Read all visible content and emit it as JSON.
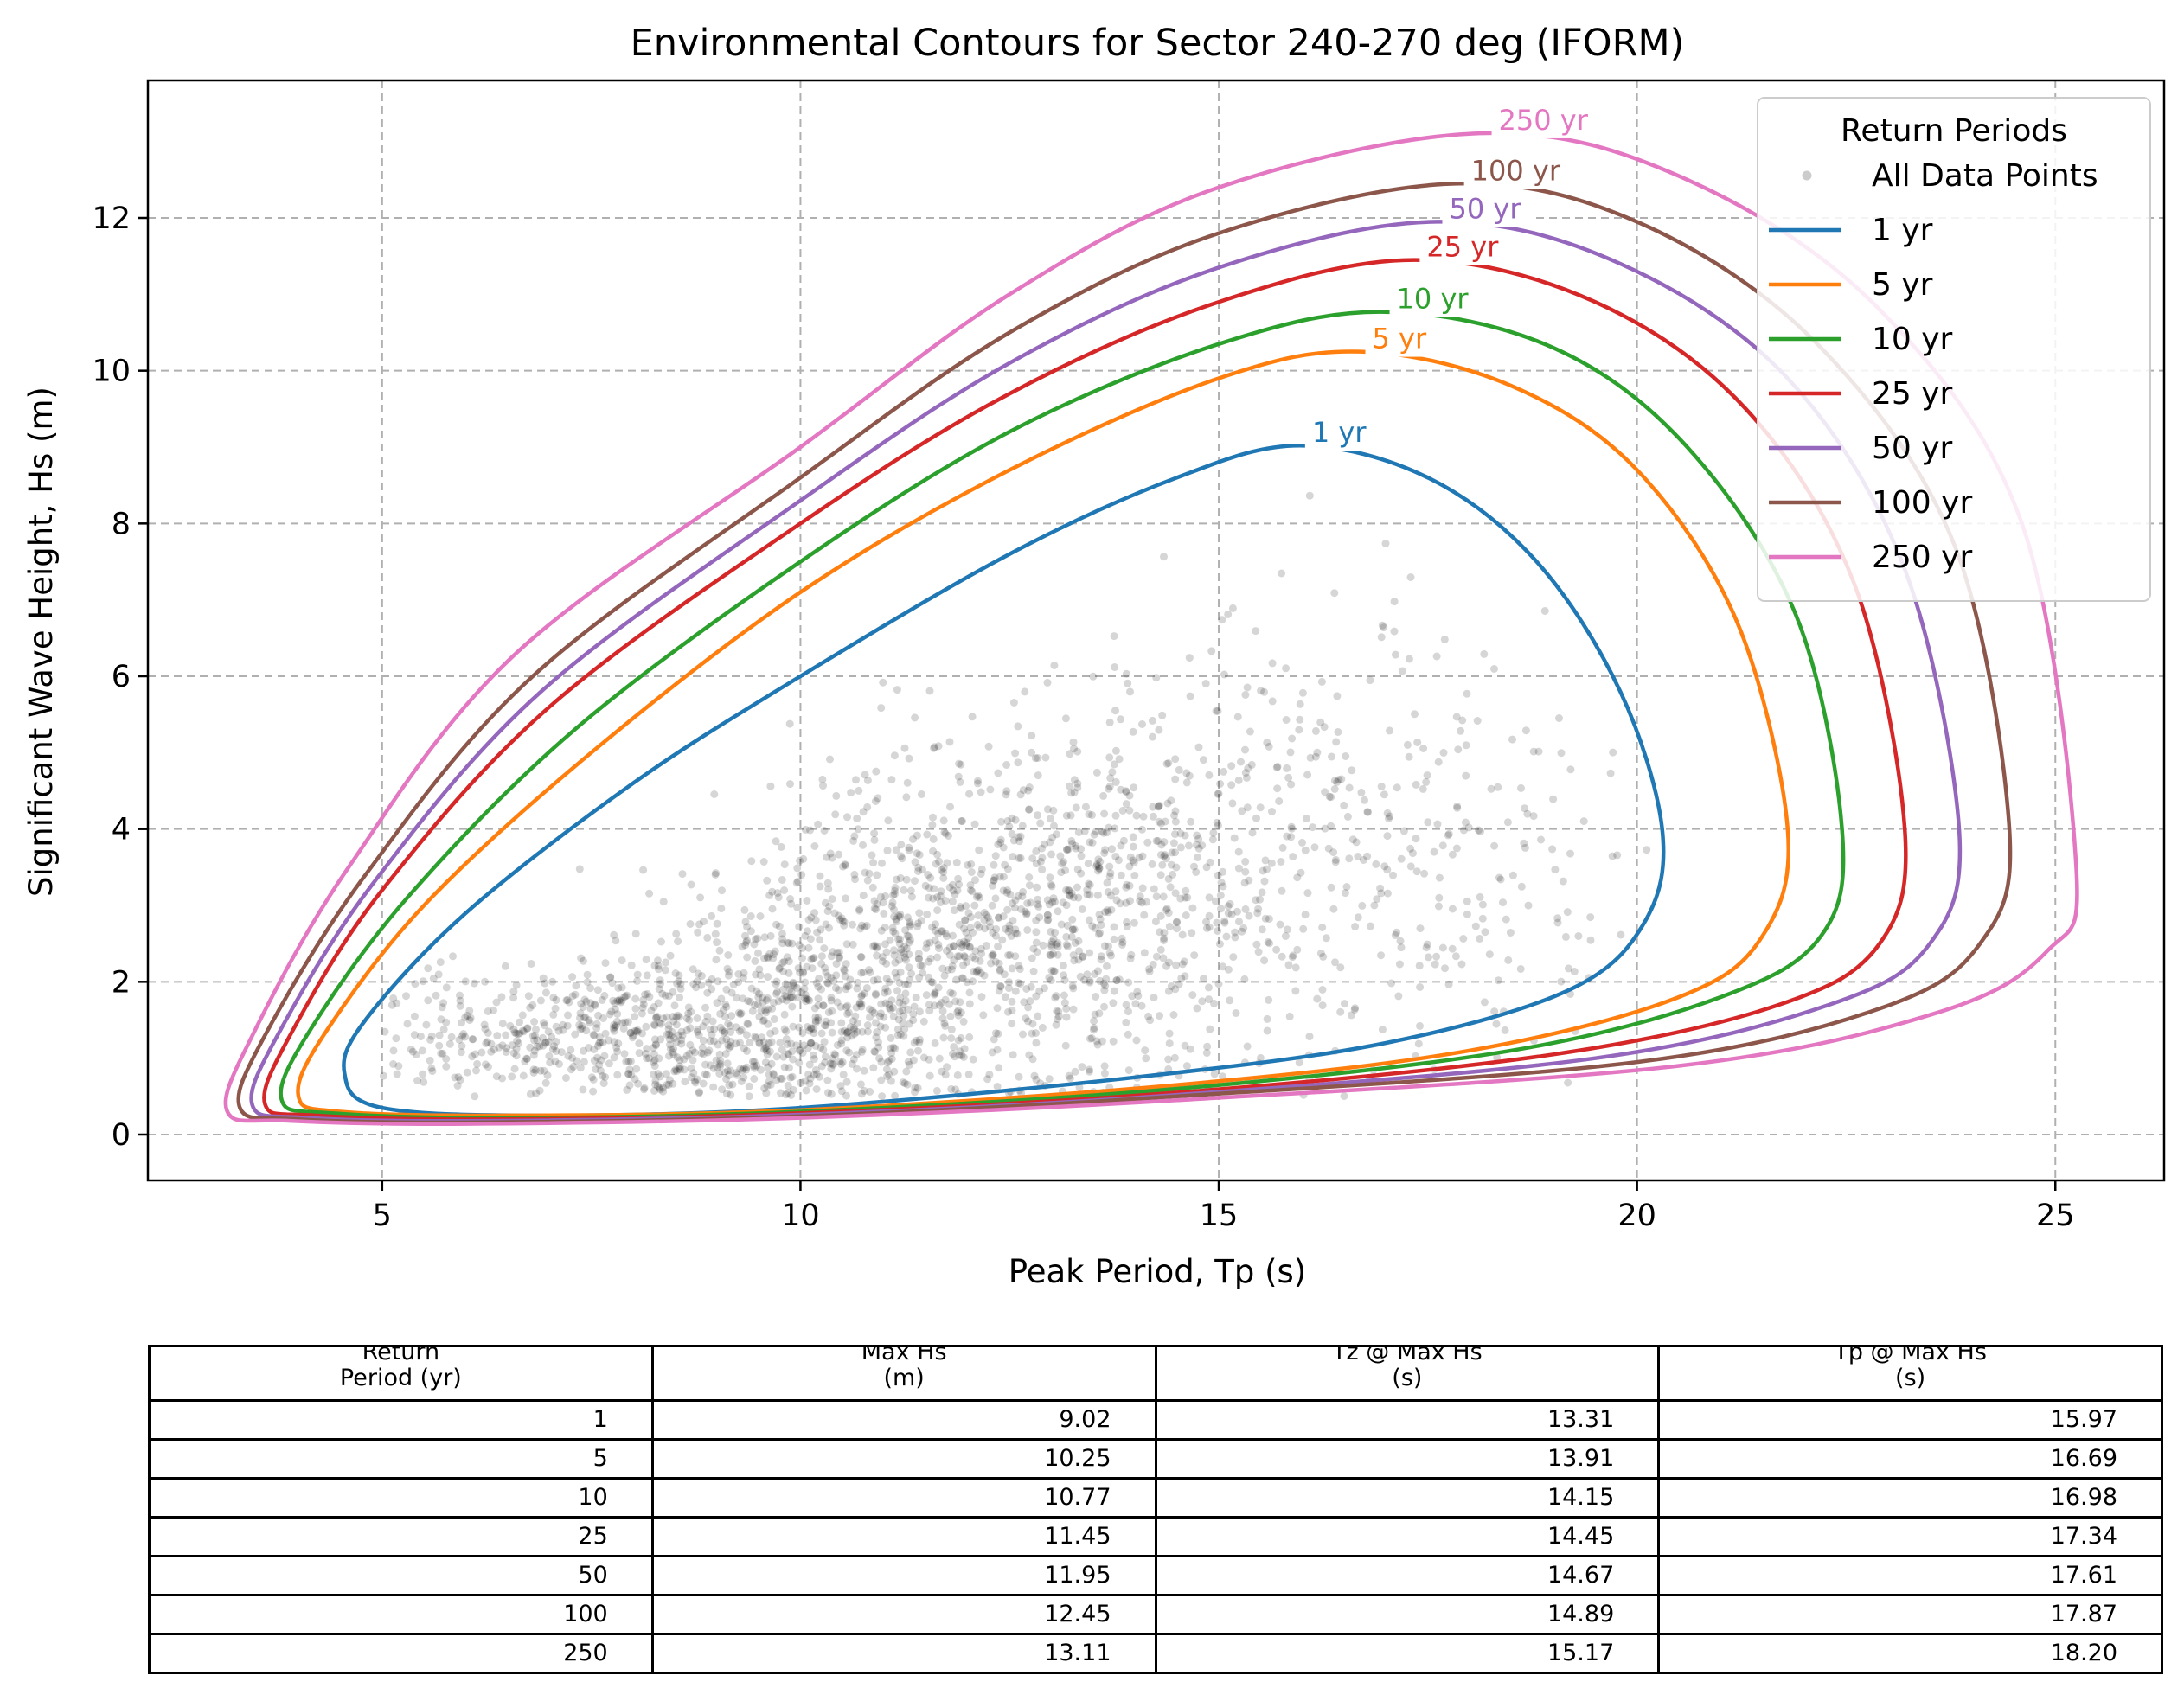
{
  "chart_data": {
    "type": "line",
    "title": "Environmental Contours for Sector 240-270 deg (IFORM)",
    "xlabel": "Peak Period, Tp (s)",
    "ylabel": "Significant Wave Height, Hs (m)",
    "xlim": [
      2.2,
      26.3
    ],
    "ylim": [
      -0.6,
      13.8
    ],
    "xticks": [
      5,
      10,
      15,
      20,
      25
    ],
    "yticks": [
      0,
      2,
      4,
      6,
      8,
      10,
      12
    ],
    "grid": true,
    "legend": {
      "title": "Return Periods",
      "placement": "top-right",
      "entries": [
        "All Data Points",
        "1 yr",
        "5 yr",
        "10 yr",
        "25 yr",
        "50 yr",
        "100 yr",
        "250 yr"
      ]
    },
    "scatter": {
      "name": "All Data Points",
      "color": "#000000"
    },
    "series": [
      {
        "name": "1 yr",
        "label": "1 yr",
        "color": "#1f77b4",
        "x": [
          15.97,
          17.5,
          18.8,
          19.8,
          20.3,
          20.1,
          19.2,
          17.0,
          14.0,
          10.0,
          7.0,
          5.0,
          4.55,
          4.8,
          6.0,
          8.0,
          10.0,
          12.5,
          14.5,
          15.97
        ],
        "y": [
          9.02,
          8.6,
          7.5,
          5.8,
          4.0,
          2.8,
          1.9,
          1.2,
          0.75,
          0.35,
          0.25,
          0.35,
          0.8,
          1.5,
          2.9,
          4.6,
          6.0,
          7.6,
          8.6,
          9.02
        ]
      },
      {
        "name": "5 yr",
        "label": "5 yr",
        "color": "#ff7f0e",
        "x": [
          16.69,
          18.5,
          20.0,
          21.2,
          21.8,
          21.5,
          20.5,
          18.0,
          14.5,
          10.0,
          6.5,
          4.5,
          4.0,
          4.3,
          5.5,
          7.5,
          10.0,
          12.5,
          15.0,
          16.69
        ],
        "y": [
          10.25,
          9.8,
          8.7,
          6.7,
          4.0,
          2.6,
          1.8,
          1.1,
          0.65,
          0.32,
          0.25,
          0.3,
          0.5,
          1.3,
          3.0,
          5.0,
          7.1,
          8.7,
          9.9,
          10.25
        ]
      },
      {
        "name": "10 yr",
        "label": "10 yr",
        "color": "#2ca02c",
        "x": [
          16.98,
          19.0,
          20.6,
          21.9,
          22.45,
          22.2,
          21.0,
          18.5,
          14.5,
          10.0,
          6.5,
          4.4,
          3.8,
          4.1,
          5.3,
          7.3,
          10.0,
          12.5,
          15.0,
          16.98
        ],
        "y": [
          10.77,
          10.3,
          9.0,
          6.8,
          4.0,
          2.6,
          1.8,
          1.1,
          0.6,
          0.3,
          0.22,
          0.28,
          0.45,
          1.3,
          3.1,
          5.3,
          7.5,
          9.2,
          10.35,
          10.77
        ]
      },
      {
        "name": "25 yr",
        "label": "25 yr",
        "color": "#d62728",
        "x": [
          17.34,
          19.5,
          21.3,
          22.6,
          23.2,
          22.9,
          21.7,
          19.0,
          14.5,
          10.0,
          6.3,
          4.2,
          3.6,
          3.9,
          5.0,
          7.0,
          10.0,
          12.5,
          15.0,
          17.34
        ],
        "y": [
          11.45,
          10.9,
          9.5,
          7.2,
          4.0,
          2.5,
          1.7,
          1.05,
          0.55,
          0.28,
          0.2,
          0.25,
          0.4,
          1.3,
          3.2,
          5.6,
          8.0,
          9.7,
          10.9,
          11.45
        ]
      },
      {
        "name": "50 yr",
        "label": "50 yr",
        "color": "#9467bd",
        "x": [
          17.61,
          19.8,
          21.8,
          23.2,
          23.85,
          23.5,
          22.3,
          19.5,
          14.5,
          10.0,
          6.2,
          4.1,
          3.45,
          3.75,
          4.9,
          6.9,
          10.0,
          12.5,
          15.0,
          17.61
        ],
        "y": [
          11.95,
          11.4,
          9.9,
          7.4,
          4.0,
          2.5,
          1.7,
          1.0,
          0.52,
          0.26,
          0.18,
          0.22,
          0.38,
          1.3,
          3.3,
          5.8,
          8.3,
          10.1,
          11.35,
          11.95
        ]
      },
      {
        "name": "100 yr",
        "label": "100 yr",
        "color": "#8c564b",
        "x": [
          17.87,
          20.1,
          22.2,
          23.8,
          24.45,
          24.1,
          22.9,
          20.0,
          14.5,
          10.0,
          6.1,
          4.0,
          3.3,
          3.6,
          4.8,
          6.8,
          10.0,
          12.5,
          15.0,
          17.87
        ],
        "y": [
          12.45,
          11.9,
          10.3,
          7.7,
          4.0,
          2.5,
          1.65,
          0.95,
          0.5,
          0.24,
          0.16,
          0.2,
          0.35,
          1.3,
          3.4,
          6.0,
          8.6,
          10.5,
          11.8,
          12.45
        ]
      },
      {
        "name": "250 yr",
        "label": "250 yr",
        "color": "#e377c2",
        "x": [
          18.2,
          20.6,
          22.9,
          24.6,
          25.25,
          24.9,
          23.6,
          20.5,
          14.5,
          10.0,
          6.0,
          3.9,
          3.15,
          3.45,
          4.6,
          6.6,
          10.0,
          12.5,
          15.0,
          18.2
        ],
        "y": [
          13.11,
          12.5,
          10.8,
          8.0,
          3.5,
          2.4,
          1.6,
          0.9,
          0.45,
          0.22,
          0.14,
          0.18,
          0.3,
          1.3,
          3.5,
          6.3,
          9.0,
          11.0,
          12.4,
          13.11
        ]
      }
    ]
  },
  "table": {
    "headers": [
      [
        "Return",
        "Period (yr)"
      ],
      [
        "Max Hs",
        "(m)"
      ],
      [
        "Tz @ Max Hs",
        "(s)"
      ],
      [
        "Tp @ Max Hs",
        "(s)"
      ]
    ],
    "rows": [
      [
        "1",
        "9.02",
        "13.31",
        "15.97"
      ],
      [
        "5",
        "10.25",
        "13.91",
        "16.69"
      ],
      [
        "10",
        "10.77",
        "14.15",
        "16.98"
      ],
      [
        "25",
        "11.45",
        "14.45",
        "17.34"
      ],
      [
        "50",
        "11.95",
        "14.67",
        "17.61"
      ],
      [
        "100",
        "12.45",
        "14.89",
        "17.87"
      ],
      [
        "250",
        "13.11",
        "15.17",
        "18.20"
      ]
    ]
  }
}
